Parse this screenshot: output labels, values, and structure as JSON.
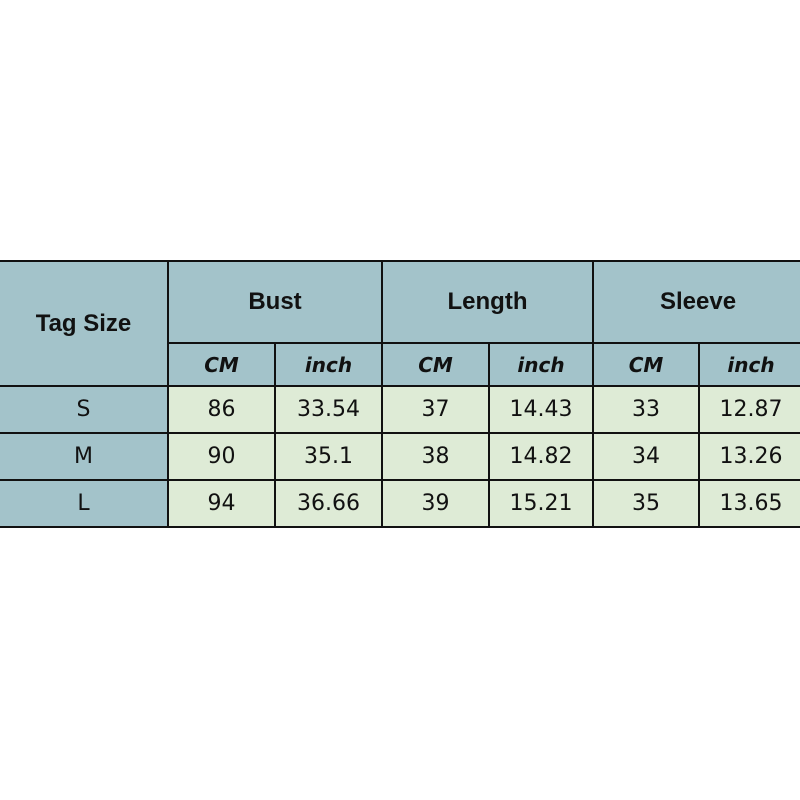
{
  "table": {
    "row_header_label": "Tag Size",
    "groups": [
      "Bust",
      "Length",
      "Sleeve"
    ],
    "units": [
      "CM",
      "inch",
      "CM",
      "inch",
      "CM",
      "inch"
    ],
    "rows": [
      {
        "size": "S",
        "values": [
          "86",
          "33.54",
          "37",
          "14.43",
          "33",
          "12.87"
        ]
      },
      {
        "size": "M",
        "values": [
          "90",
          "35.1",
          "38",
          "14.82",
          "34",
          "13.26"
        ]
      },
      {
        "size": "L",
        "values": [
          "94",
          "36.66",
          "39",
          "15.21",
          "35",
          "13.65"
        ]
      }
    ],
    "colors": {
      "header": "#a3c3ca",
      "data": "#deebd6",
      "border": "#111111"
    }
  }
}
